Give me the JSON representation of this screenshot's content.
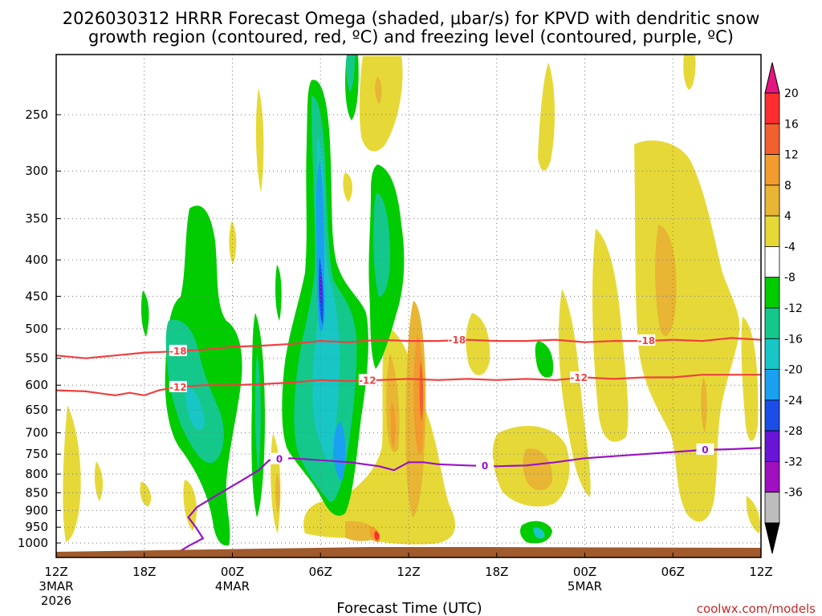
{
  "chart_data": {
    "type": "contour-time-height",
    "title_line1": "2026030312 HRRR Forecast Omega (shaded, μbar/s) for KPVD with dendritic snow",
    "title_line2": "growth region (contoured, red, ºC) and freezing level (contoured, purple, ºC)",
    "xlabel": "Forecast Time (UTC)",
    "credit": "coolwx.com/models",
    "x_hours_range": [
      0,
      48
    ],
    "y_pressure_range": [
      1020,
      200
    ],
    "x_ticks": [
      {
        "h": 0,
        "l1": "12Z",
        "l2": "3MAR",
        "l3": "2026"
      },
      {
        "h": 6,
        "l1": "18Z"
      },
      {
        "h": 12,
        "l1": "00Z",
        "l2": "4MAR"
      },
      {
        "h": 18,
        "l1": "06Z"
      },
      {
        "h": 24,
        "l1": "12Z"
      },
      {
        "h": 30,
        "l1": "18Z"
      },
      {
        "h": 36,
        "l1": "00Z",
        "l2": "5MAR"
      },
      {
        "h": 42,
        "l1": "06Z"
      },
      {
        "h": 48,
        "l1": "12Z"
      }
    ],
    "y_ticks": [
      "250",
      "300",
      "350",
      "400",
      "450",
      "500",
      "550",
      "600",
      "650",
      "700",
      "750",
      "800",
      "850",
      "900",
      "950",
      "1000"
    ],
    "colorbar": {
      "labels": [
        "20",
        "16",
        "12",
        "8",
        "4",
        "-4",
        "-8",
        "-12",
        "-16",
        "-20",
        "-24",
        "-28",
        "-32",
        "-36"
      ],
      "colors": [
        "#e3177f",
        "#ff2d2d",
        "#f2602f",
        "#f29b2e",
        "#e8b534",
        "#e6d937",
        "#ffffff",
        "#00cc00",
        "#14c88c",
        "#18c6c6",
        "#1aa0f0",
        "#1a4ee6",
        "#6a14d8",
        "#a00fc0",
        "#bdbdbd",
        "#000000"
      ]
    },
    "dgz_contours": [
      {
        "value": -18,
        "label": "-18",
        "color": "#f04040",
        "points": [
          [
            0,
            545
          ],
          [
            2,
            550
          ],
          [
            4,
            545
          ],
          [
            6,
            540
          ],
          [
            8,
            538
          ],
          [
            10,
            535
          ],
          [
            12,
            530
          ],
          [
            14,
            528
          ],
          [
            16,
            525
          ],
          [
            18,
            520
          ],
          [
            20,
            522
          ],
          [
            22,
            518
          ],
          [
            24,
            520
          ],
          [
            26,
            520
          ],
          [
            28,
            518
          ],
          [
            30,
            520
          ],
          [
            32,
            520
          ],
          [
            34,
            518
          ],
          [
            36,
            522
          ],
          [
            38,
            520
          ],
          [
            40,
            520
          ],
          [
            42,
            518
          ],
          [
            44,
            520
          ],
          [
            46,
            515
          ],
          [
            48,
            518
          ]
        ],
        "label_hours": [
          8.3,
          27.3,
          40.2
        ]
      },
      {
        "value": -12,
        "label": "-12",
        "color": "#f04040",
        "points": [
          [
            0,
            610
          ],
          [
            2,
            612
          ],
          [
            4,
            620
          ],
          [
            5,
            615
          ],
          [
            6,
            620
          ],
          [
            7,
            610
          ],
          [
            8,
            605
          ],
          [
            10,
            600
          ],
          [
            12,
            600
          ],
          [
            14,
            598
          ],
          [
            16,
            595
          ],
          [
            18,
            590
          ],
          [
            20,
            592
          ],
          [
            22,
            590
          ],
          [
            24,
            588
          ],
          [
            26,
            590
          ],
          [
            28,
            588
          ],
          [
            30,
            590
          ],
          [
            32,
            588
          ],
          [
            34,
            590
          ],
          [
            36,
            585
          ],
          [
            38,
            588
          ],
          [
            40,
            585
          ],
          [
            42,
            585
          ],
          [
            44,
            580
          ],
          [
            46,
            580
          ],
          [
            48,
            580
          ]
        ],
        "label_hours": [
          8.3,
          21.2,
          35.6
        ]
      },
      {
        "value": 0,
        "label": "0",
        "color": "#9912c8",
        "points": [
          [
            0,
            1050
          ],
          [
            8,
            1040
          ],
          [
            9,
            1010
          ],
          [
            10,
            985
          ],
          [
            9.5,
            950
          ],
          [
            9,
            920
          ],
          [
            9.6,
            890
          ],
          [
            11,
            855
          ],
          [
            12.5,
            820
          ],
          [
            13.8,
            790
          ],
          [
            14.5,
            765
          ],
          [
            16,
            760
          ],
          [
            18,
            765
          ],
          [
            20,
            770
          ],
          [
            21,
            775
          ],
          [
            22,
            780
          ],
          [
            23,
            790
          ],
          [
            24,
            770
          ],
          [
            25,
            770
          ],
          [
            26,
            775
          ],
          [
            28,
            778
          ],
          [
            30,
            780
          ],
          [
            32,
            778
          ],
          [
            34,
            770
          ],
          [
            36,
            760
          ],
          [
            38,
            755
          ],
          [
            40,
            750
          ],
          [
            42,
            745
          ],
          [
            44,
            740
          ],
          [
            46,
            738
          ],
          [
            48,
            735
          ]
        ],
        "label_hours": [
          15.2,
          29.2,
          44.2
        ]
      }
    ]
  }
}
